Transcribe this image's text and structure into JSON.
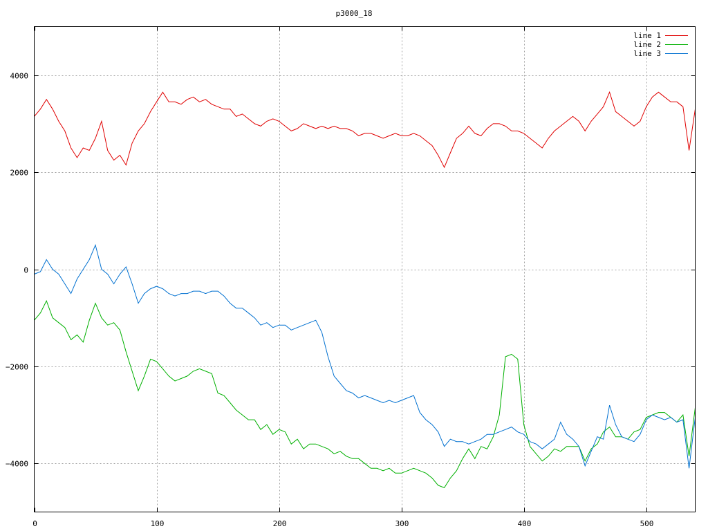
{
  "chart_data": {
    "type": "line",
    "title": "p3000_18",
    "xlabel": "",
    "ylabel": "",
    "xlim": [
      0,
      540
    ],
    "ylim": [
      -5000,
      5000
    ],
    "xticks": [
      0,
      100,
      200,
      300,
      400,
      500
    ],
    "yticks": [
      -4000,
      -2000,
      0,
      2000,
      4000
    ],
    "ytick_labels": [
      "−4000",
      "−2000",
      "0",
      "2000",
      "4000"
    ],
    "grid": true,
    "legend": "top-right",
    "series": [
      {
        "name": "line 1",
        "color": "#e00000",
        "x": [
          0,
          5,
          10,
          15,
          20,
          25,
          30,
          35,
          40,
          45,
          50,
          55,
          60,
          65,
          70,
          75,
          80,
          85,
          90,
          95,
          100,
          105,
          110,
          115,
          120,
          125,
          130,
          135,
          140,
          145,
          150,
          155,
          160,
          165,
          170,
          175,
          180,
          185,
          190,
          195,
          200,
          205,
          210,
          215,
          220,
          225,
          230,
          235,
          240,
          245,
          250,
          255,
          260,
          265,
          270,
          275,
          280,
          285,
          290,
          295,
          300,
          305,
          310,
          315,
          320,
          325,
          330,
          335,
          340,
          345,
          350,
          355,
          360,
          365,
          370,
          375,
          380,
          385,
          390,
          395,
          400,
          405,
          410,
          415,
          420,
          425,
          430,
          435,
          440,
          445,
          450,
          455,
          460,
          465,
          470,
          475,
          480,
          485,
          490,
          495,
          500,
          505,
          510,
          515,
          520,
          525,
          530,
          535,
          540
        ],
        "y": [
          3150,
          3300,
          3500,
          3300,
          3050,
          2850,
          2500,
          2300,
          2500,
          2450,
          2700,
          3050,
          2450,
          2250,
          2350,
          2150,
          2600,
          2850,
          3000,
          3250,
          3450,
          3650,
          3450,
          3450,
          3400,
          3500,
          3550,
          3450,
          3500,
          3400,
          3350,
          3300,
          3300,
          3150,
          3200,
          3100,
          3000,
          2950,
          3050,
          3100,
          3050,
          2950,
          2850,
          2900,
          3000,
          2950,
          2900,
          2950,
          2900,
          2950,
          2900,
          2900,
          2850,
          2750,
          2800,
          2800,
          2750,
          2700,
          2750,
          2800,
          2750,
          2750,
          2800,
          2750,
          2650,
          2550,
          2350,
          2100,
          2400,
          2700,
          2800,
          2950,
          2800,
          2750,
          2900,
          3000,
          3000,
          2950,
          2850,
          2850,
          2800,
          2700,
          2600,
          2500,
          2700,
          2850,
          2950,
          3050,
          3150,
          3050,
          2850,
          3050,
          3200,
          3350,
          3650,
          3250,
          3150,
          3050,
          2950,
          3050,
          3350,
          3550,
          3650,
          3550,
          3450,
          3450,
          3350,
          2450,
          3300
        ]
      },
      {
        "name": "line 2",
        "color": "#00b000",
        "x": [
          0,
          5,
          10,
          15,
          20,
          25,
          30,
          35,
          40,
          45,
          50,
          55,
          60,
          65,
          70,
          75,
          80,
          85,
          90,
          95,
          100,
          105,
          110,
          115,
          120,
          125,
          130,
          135,
          140,
          145,
          150,
          155,
          160,
          165,
          170,
          175,
          180,
          185,
          190,
          195,
          200,
          205,
          210,
          215,
          220,
          225,
          230,
          235,
          240,
          245,
          250,
          255,
          260,
          265,
          270,
          275,
          280,
          285,
          290,
          295,
          300,
          305,
          310,
          315,
          320,
          325,
          330,
          335,
          340,
          345,
          350,
          355,
          360,
          365,
          370,
          375,
          380,
          385,
          390,
          395,
          400,
          405,
          410,
          415,
          420,
          425,
          430,
          435,
          440,
          445,
          450,
          455,
          460,
          465,
          470,
          475,
          480,
          485,
          490,
          495,
          500,
          505,
          510,
          515,
          520,
          525,
          530,
          535,
          540
        ],
        "y": [
          -1050,
          -900,
          -650,
          -1000,
          -1100,
          -1200,
          -1450,
          -1350,
          -1500,
          -1050,
          -700,
          -1000,
          -1150,
          -1100,
          -1250,
          -1700,
          -2100,
          -2500,
          -2200,
          -1850,
          -1900,
          -2050,
          -2200,
          -2300,
          -2250,
          -2200,
          -2100,
          -2050,
          -2100,
          -2150,
          -2550,
          -2600,
          -2750,
          -2900,
          -3000,
          -3100,
          -3100,
          -3300,
          -3200,
          -3400,
          -3300,
          -3350,
          -3600,
          -3500,
          -3700,
          -3600,
          -3600,
          -3650,
          -3700,
          -3800,
          -3750,
          -3850,
          -3900,
          -3900,
          -4000,
          -4100,
          -4100,
          -4150,
          -4100,
          -4200,
          -4200,
          -4150,
          -4100,
          -4150,
          -4200,
          -4300,
          -4450,
          -4500,
          -4300,
          -4150,
          -3900,
          -3700,
          -3900,
          -3650,
          -3700,
          -3450,
          -3000,
          -1800,
          -1750,
          -1850,
          -3200,
          -3650,
          -3800,
          -3950,
          -3850,
          -3700,
          -3750,
          -3650,
          -3650,
          -3650,
          -3950,
          -3700,
          -3600,
          -3350,
          -3250,
          -3450,
          -3450,
          -3500,
          -3350,
          -3300,
          -3050,
          -3000,
          -2950,
          -2950,
          -3050,
          -3150,
          -3000,
          -3850,
          -2850
        ]
      },
      {
        "name": "line 3",
        "color": "#0070d0",
        "x": [
          0,
          5,
          10,
          15,
          20,
          25,
          30,
          35,
          40,
          45,
          50,
          55,
          60,
          65,
          70,
          75,
          80,
          85,
          90,
          95,
          100,
          105,
          110,
          115,
          120,
          125,
          130,
          135,
          140,
          145,
          150,
          155,
          160,
          165,
          170,
          175,
          180,
          185,
          190,
          195,
          200,
          205,
          210,
          215,
          220,
          225,
          230,
          235,
          240,
          245,
          250,
          255,
          260,
          265,
          270,
          275,
          280,
          285,
          290,
          295,
          300,
          305,
          310,
          315,
          320,
          325,
          330,
          335,
          340,
          345,
          350,
          355,
          360,
          365,
          370,
          375,
          380,
          385,
          390,
          395,
          400,
          405,
          410,
          415,
          420,
          425,
          430,
          435,
          440,
          445,
          450,
          455,
          460,
          465,
          470,
          475,
          480,
          485,
          490,
          495,
          500,
          505,
          510,
          515,
          520,
          525,
          530,
          535,
          540
        ],
        "y": [
          -100,
          -50,
          200,
          0,
          -100,
          -300,
          -500,
          -200,
          0,
          200,
          500,
          0,
          -100,
          -300,
          -100,
          50,
          -300,
          -700,
          -500,
          -400,
          -350,
          -400,
          -500,
          -550,
          -500,
          -500,
          -450,
          -450,
          -500,
          -450,
          -450,
          -550,
          -700,
          -800,
          -800,
          -900,
          -1000,
          -1150,
          -1100,
          -1200,
          -1150,
          -1150,
          -1250,
          -1200,
          -1150,
          -1100,
          -1050,
          -1300,
          -1800,
          -2200,
          -2350,
          -2500,
          -2550,
          -2650,
          -2600,
          -2650,
          -2700,
          -2750,
          -2700,
          -2750,
          -2700,
          -2650,
          -2600,
          -2950,
          -3100,
          -3200,
          -3350,
          -3650,
          -3500,
          -3550,
          -3550,
          -3600,
          -3550,
          -3500,
          -3400,
          -3400,
          -3350,
          -3300,
          -3250,
          -3350,
          -3400,
          -3550,
          -3600,
          -3700,
          -3600,
          -3500,
          -3150,
          -3400,
          -3500,
          -3650,
          -4050,
          -3750,
          -3450,
          -3500,
          -2800,
          -3200,
          -3450,
          -3500,
          -3550,
          -3400,
          -3100,
          -3000,
          -3050,
          -3100,
          -3050,
          -3150,
          -3100,
          -4100,
          -3050
        ]
      }
    ]
  }
}
